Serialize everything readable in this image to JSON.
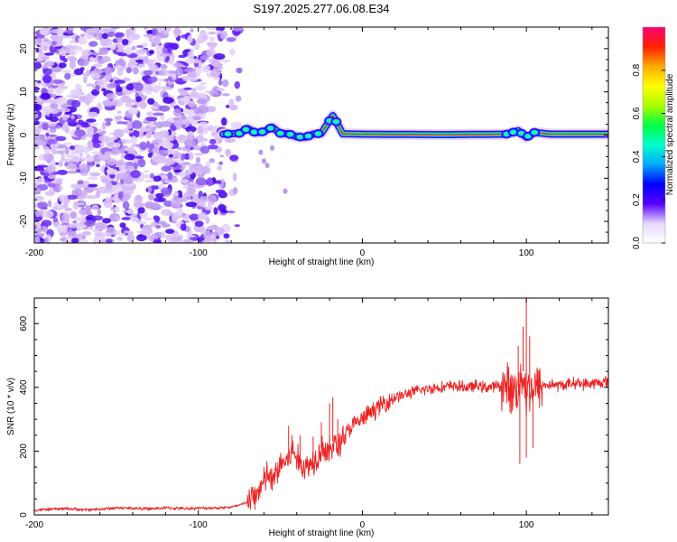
{
  "title": "S197.2025.277.06.08.E34",
  "chart_data": [
    {
      "type": "heatmap",
      "name": "spectrogram",
      "xlabel": "Height of straight line (km)",
      "ylabel": "Frequency (Hz)",
      "xlim": [
        -200,
        150
      ],
      "ylim": [
        -25,
        25
      ],
      "xticks": [
        -200,
        -100,
        0,
        100
      ],
      "yticks": [
        -20,
        -10,
        0,
        10,
        20
      ],
      "noise_region_x": [
        -200,
        -85
      ],
      "carrier_trace": [
        {
          "x": -85,
          "y": 0.2
        },
        {
          "x": -75,
          "y": 0.4
        },
        {
          "x": -70,
          "y": 1.5
        },
        {
          "x": -65,
          "y": 0.5
        },
        {
          "x": -60,
          "y": 0.8
        },
        {
          "x": -55,
          "y": 1.8
        },
        {
          "x": -50,
          "y": 0.4
        },
        {
          "x": -45,
          "y": 0.3
        },
        {
          "x": -40,
          "y": -0.4
        },
        {
          "x": -35,
          "y": -0.5
        },
        {
          "x": -30,
          "y": 0.2
        },
        {
          "x": -25,
          "y": 0.4
        },
        {
          "x": -18,
          "y": 4.5
        },
        {
          "x": -12,
          "y": 0.3
        },
        {
          "x": 0,
          "y": 0.2
        },
        {
          "x": 50,
          "y": 0.1
        },
        {
          "x": 88,
          "y": 0.2
        },
        {
          "x": 95,
          "y": 1.0
        },
        {
          "x": 100,
          "y": -0.5
        },
        {
          "x": 105,
          "y": 0.6
        },
        {
          "x": 115,
          "y": 0.2
        },
        {
          "x": 150,
          "y": 0.2
        }
      ],
      "colorbar": {
        "label": "Normalized spectral amplitude",
        "ticks": [
          0.0,
          0.2,
          0.4,
          0.6,
          0.8
        ],
        "tick_labels": [
          "0.0",
          "0.2",
          "0.4",
          "0.6",
          "0.8"
        ],
        "range": [
          0,
          1
        ],
        "colors": [
          "#ffffff",
          "#e6d6fb",
          "#5500ff",
          "#0000ff",
          "#00aaff",
          "#00ffcc",
          "#00ff44",
          "#aaff00",
          "#ffff00",
          "#ffaa00",
          "#ff2200",
          "#ff0077"
        ]
      }
    },
    {
      "type": "line",
      "name": "snr",
      "xlabel": "Height of straight line (km)",
      "ylabel": "SNR (10 * v/v)",
      "xlim": [
        -200,
        150
      ],
      "ylim": [
        0,
        680
      ],
      "xticks": [
        -200,
        -100,
        0,
        100
      ],
      "yticks": [
        0,
        200,
        400,
        600
      ],
      "color": "#ee2222",
      "series": [
        {
          "name": "SNR",
          "x": [
            -200,
            -190,
            -180,
            -170,
            -160,
            -150,
            -140,
            -130,
            -120,
            -110,
            -100,
            -90,
            -80,
            -75,
            -70,
            -65,
            -62,
            -60,
            -58,
            -55,
            -50,
            -46,
            -42,
            -38,
            -34,
            -30,
            -27,
            -24,
            -21,
            -18,
            -15,
            -12,
            -9,
            -6,
            -3,
            0,
            5,
            10,
            15,
            20,
            25,
            30,
            35,
            40,
            45,
            50,
            55,
            60,
            65,
            70,
            75,
            80,
            85,
            88,
            91,
            94,
            96,
            98,
            100,
            102,
            104,
            107,
            110,
            115,
            120,
            125,
            130,
            135,
            140,
            145,
            150
          ],
          "y": [
            15,
            18,
            20,
            16,
            18,
            22,
            21,
            19,
            22,
            20,
            21,
            22,
            24,
            30,
            40,
            60,
            90,
            100,
            130,
            100,
            160,
            170,
            200,
            160,
            150,
            170,
            190,
            220,
            180,
            230,
            210,
            250,
            260,
            280,
            290,
            300,
            320,
            340,
            355,
            370,
            375,
            385,
            390,
            395,
            400,
            400,
            405,
            402,
            400,
            405,
            400,
            402,
            405,
            400,
            395,
            390,
            410,
            450,
            380,
            400,
            395,
            400,
            405,
            410,
            405,
            410,
            415,
            410,
            412,
            415,
            418
          ]
        }
      ],
      "spikes": [
        {
          "x": -60,
          "y": 150
        },
        {
          "x": -45,
          "y": 280
        },
        {
          "x": -43,
          "y": 250
        },
        {
          "x": -38,
          "y": 250
        },
        {
          "x": -30,
          "y": 245
        },
        {
          "x": -25,
          "y": 290
        },
        {
          "x": -20,
          "y": 350
        },
        {
          "x": -18,
          "y": 370
        },
        {
          "x": -15,
          "y": 300
        },
        {
          "x": 95,
          "y": 530
        },
        {
          "x": 98,
          "y": 590
        },
        {
          "x": 100,
          "y": 690
        },
        {
          "x": 102,
          "y": 560
        },
        {
          "x": 96,
          "y": 160
        },
        {
          "x": 100,
          "y": 180
        },
        {
          "x": 104,
          "y": 210
        }
      ]
    }
  ]
}
